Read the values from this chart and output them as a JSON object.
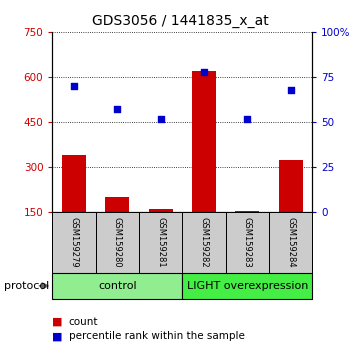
{
  "title": "GDS3056 / 1441835_x_at",
  "samples": [
    "GSM159279",
    "GSM159280",
    "GSM159281",
    "GSM159282",
    "GSM159283",
    "GSM159284"
  ],
  "counts": [
    340,
    200,
    160,
    620,
    155,
    325
  ],
  "percentiles": [
    70,
    57,
    52,
    78,
    52,
    68
  ],
  "ylim_left": [
    150,
    750
  ],
  "ylim_right": [
    0,
    100
  ],
  "yticks_left": [
    150,
    300,
    450,
    600,
    750
  ],
  "yticks_right": [
    0,
    25,
    50,
    75,
    100
  ],
  "yticklabels_right": [
    "0",
    "25",
    "50",
    "75",
    "100%"
  ],
  "bar_color": "#cc0000",
  "scatter_color": "#0000cc",
  "bar_width": 0.55,
  "control_color": "#90ee90",
  "light_color": "#44ee44",
  "gray_color": "#cccccc",
  "protocol_label": "protocol",
  "legend_count": "count",
  "legend_pct": "percentile rank within the sample",
  "title_fontsize": 10,
  "tick_fontsize": 7.5,
  "sample_fontsize": 6,
  "proto_fontsize": 8,
  "legend_fontsize": 7.5
}
